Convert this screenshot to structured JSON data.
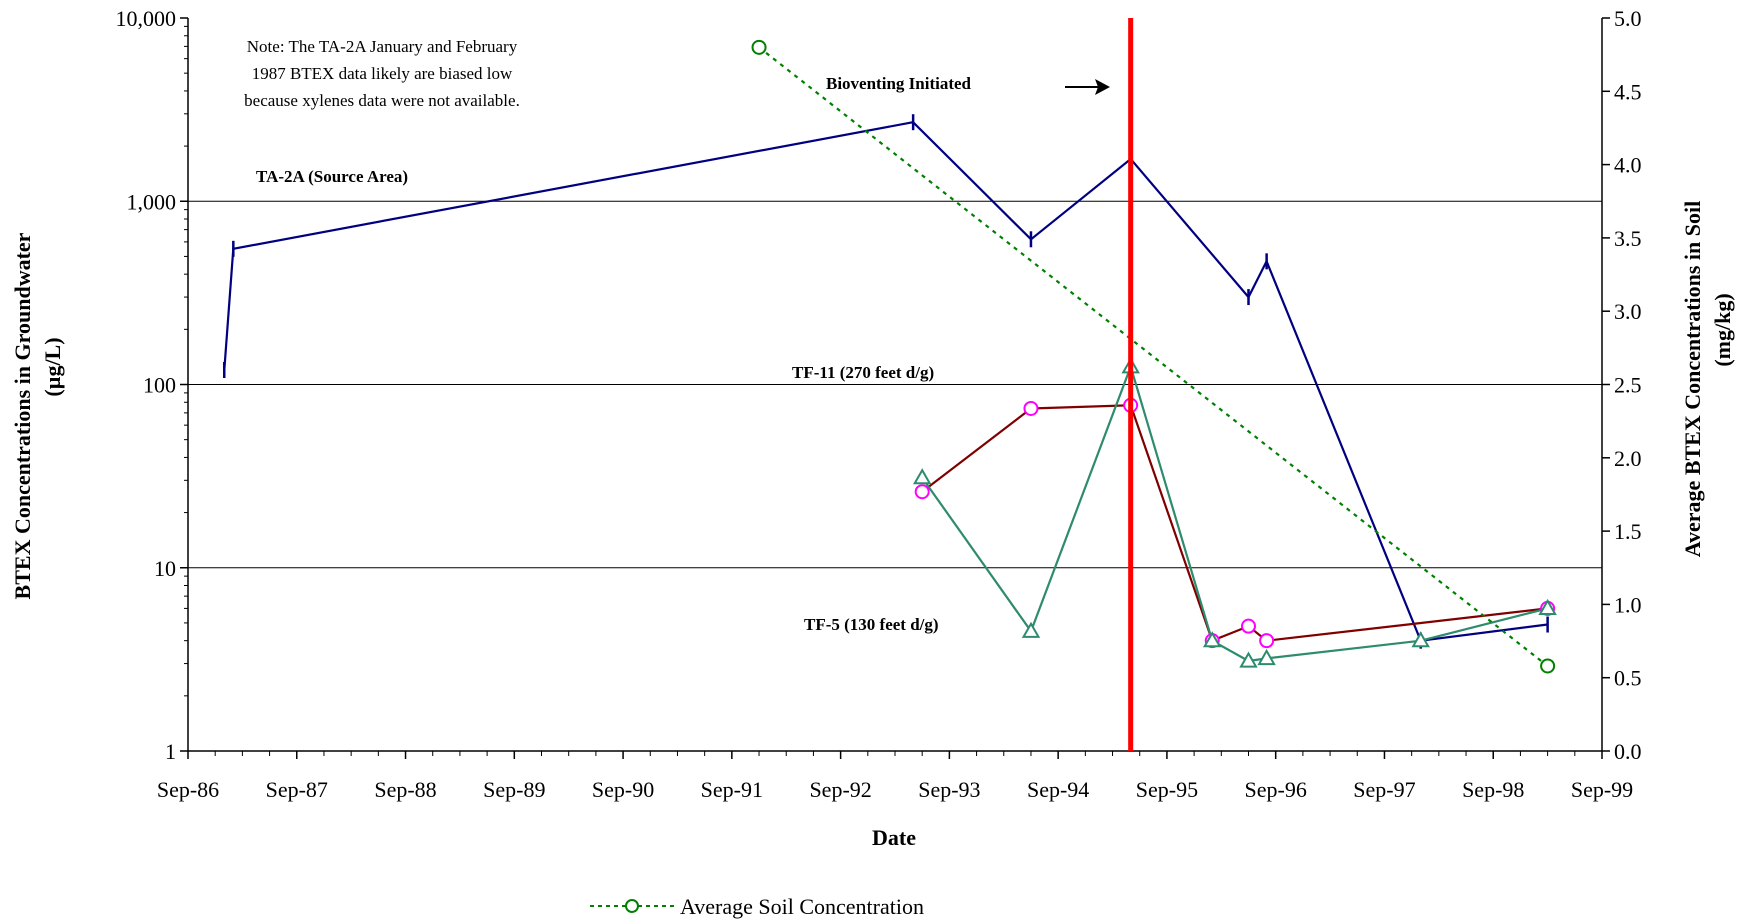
{
  "chart_data": {
    "type": "line",
    "x_axis": {
      "label": "Date",
      "tick_labels": [
        "Sep-86",
        "Sep-87",
        "Sep-88",
        "Sep-89",
        "Sep-90",
        "Sep-91",
        "Sep-92",
        "Sep-93",
        "Sep-94",
        "Sep-95",
        "Sep-96",
        "Sep-97",
        "Sep-98",
        "Sep-99"
      ],
      "range": [
        "1986-09",
        "1999-09"
      ]
    },
    "y_axis_left": {
      "label_line1": "BTEX Concentrations in Groundwater",
      "label_line2": "(µg/L)",
      "scale": "log",
      "range": [
        1,
        10000
      ],
      "tick_labels": [
        "1",
        "10",
        "100",
        "1,000",
        "10,000"
      ],
      "tick_values": [
        1,
        10,
        100,
        1000,
        10000
      ]
    },
    "y_axis_right": {
      "label_line1": "Average BTEX Concentrations in Soil",
      "label_line2": "(mg/kg)",
      "scale": "linear",
      "range": [
        0,
        5
      ],
      "tick_labels": [
        "0.0",
        "0.5",
        "1.0",
        "1.5",
        "2.0",
        "2.5",
        "3.0",
        "3.5",
        "4.0",
        "4.5",
        "5.0"
      ],
      "tick_values": [
        0,
        0.5,
        1,
        1.5,
        2,
        2.5,
        3,
        3.5,
        4,
        4.5,
        5
      ]
    },
    "gridlines": {
      "horizontal": true,
      "at_left_values": [
        10,
        100,
        1000
      ]
    },
    "series": [
      {
        "id": "ta2a",
        "label": "TA-2A (Source Area)",
        "axis": "left",
        "color": "#000080",
        "marker": "dash",
        "points": [
          {
            "date": "1987-01",
            "value": 120
          },
          {
            "date": "1987-02",
            "value": 550
          },
          {
            "date": "1993-05",
            "value": 2700
          },
          {
            "date": "1994-06",
            "value": 620
          },
          {
            "date": "1995-05",
            "value": 1700
          },
          {
            "date": "1996-06",
            "value": 300
          },
          {
            "date": "1996-08",
            "value": 470
          },
          {
            "date": "1998-01",
            "value": 4
          },
          {
            "date": "1999-03",
            "value": 4.9
          }
        ]
      },
      {
        "id": "tf11",
        "label": "TF-11 (270 feet d/g)",
        "axis": "left",
        "color": "#800000",
        "marker": "circle",
        "marker_color": "#ff00ff",
        "points": [
          {
            "date": "1993-06",
            "value": 26
          },
          {
            "date": "1994-06",
            "value": 74
          },
          {
            "date": "1995-05",
            "value": 77
          },
          {
            "date": "1996-02",
            "value": 4
          },
          {
            "date": "1996-06",
            "value": 4.8
          },
          {
            "date": "1996-08",
            "value": 4
          },
          {
            "date": "1999-03",
            "value": 6
          }
        ]
      },
      {
        "id": "tf5",
        "label": "TF-5 (130 feet d/g)",
        "axis": "left",
        "color": "#2e8b6e",
        "marker": "triangle",
        "points": [
          {
            "date": "1993-06",
            "value": 31
          },
          {
            "date": "1994-06",
            "value": 4.5
          },
          {
            "date": "1995-05",
            "value": 125
          },
          {
            "date": "1996-02",
            "value": 4
          },
          {
            "date": "1996-06",
            "value": 3.1
          },
          {
            "date": "1996-08",
            "value": 3.2
          },
          {
            "date": "1998-01",
            "value": 4
          },
          {
            "date": "1999-03",
            "value": 6
          }
        ]
      },
      {
        "id": "soil",
        "label": "Average Soil Concentration",
        "axis": "right",
        "color": "#008000",
        "marker": "circle",
        "line_style": "dotted",
        "points": [
          {
            "date": "1991-12",
            "value": 4.8
          },
          {
            "date": "1999-03",
            "value": 0.58
          }
        ]
      }
    ],
    "event_line": {
      "date": "1995-05",
      "color": "#ff0000"
    },
    "annotations": {
      "note_lines": [
        "Note: The TA-2A January and February",
        "1987 BTEX data likely are biased low",
        "because xylenes data were not available."
      ],
      "bioventing": "Bioventing Initiated"
    },
    "legend": {
      "placement": "bottom-center",
      "entries": [
        "Average Soil Concentration"
      ]
    }
  }
}
